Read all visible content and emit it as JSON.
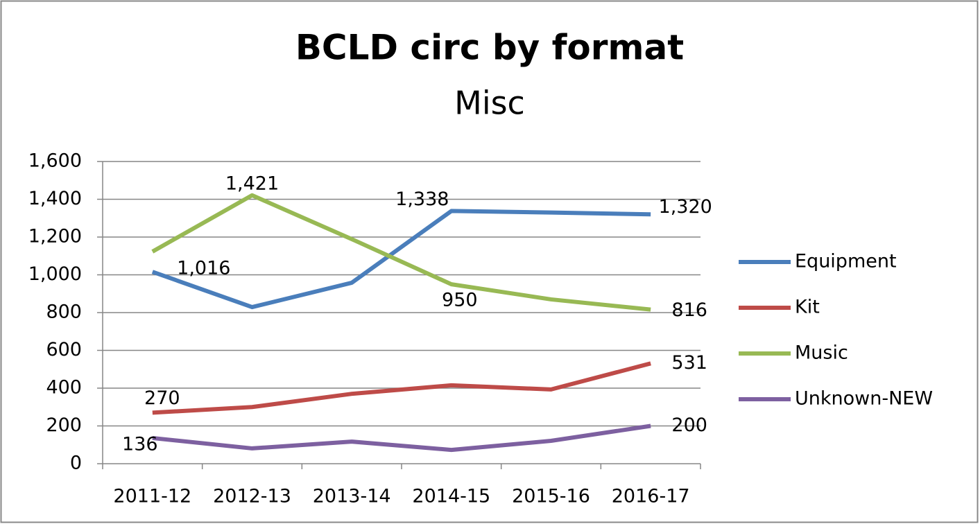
{
  "chart_data": {
    "type": "line",
    "title": "BCLD circ by format",
    "subtitle": "Misc",
    "categories": [
      "2011-12",
      "2012-13",
      "2013-14",
      "2014-15",
      "2015-16",
      "2016-17"
    ],
    "series": [
      {
        "name": "Equipment",
        "color": "#4a7ebb",
        "values": [
          1016,
          829,
          958,
          1338,
          1330,
          1320
        ],
        "value_labels": [
          "1,016",
          null,
          null,
          "1,338",
          null,
          "1,320"
        ]
      },
      {
        "name": "Kit",
        "color": "#be4b48",
        "values": [
          270,
          300,
          370,
          415,
          393,
          531
        ],
        "value_labels": [
          "270",
          null,
          null,
          null,
          null,
          "531"
        ]
      },
      {
        "name": "Music",
        "color": "#98b954",
        "values": [
          1123,
          1421,
          1189,
          950,
          870,
          816
        ],
        "value_labels": [
          null,
          "1,421",
          null,
          "950",
          null,
          "816"
        ]
      },
      {
        "name": "Unknown-NEW",
        "color": "#7d60a0",
        "values": [
          136,
          81,
          117,
          73,
          121,
          200
        ],
        "value_labels": [
          "136",
          null,
          null,
          null,
          null,
          "200"
        ]
      }
    ],
    "ylim": [
      0,
      1600
    ],
    "yticks": [
      0,
      200,
      400,
      600,
      800,
      {
        "value": 1000,
        "label": "1,000"
      },
      {
        "value": 1200,
        "label": "1,200"
      },
      {
        "value": 1400,
        "label": "1,400"
      },
      {
        "value": 1600,
        "label": "1,600"
      }
    ],
    "grid": true,
    "legend": "right"
  }
}
